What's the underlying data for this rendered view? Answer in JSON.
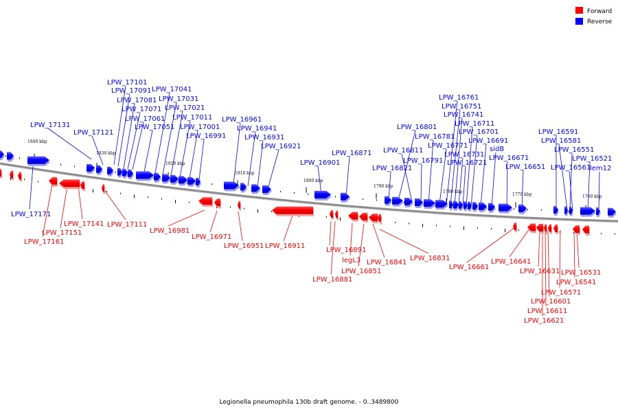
{
  "legend": [
    {
      "label": "Forward",
      "color": "#ff0000"
    },
    {
      "label": "Reverse",
      "color": "#0000ff"
    }
  ],
  "caption": "Legionella pneumophila 130b draft genome. - 0..3489800",
  "colors": {
    "forward": "#ff0000",
    "reverse": "#0000ff",
    "axis": "#8c8c8c"
  },
  "scale_labels": [
    "1840 kbp",
    "1830 kbp",
    "1820 kbp",
    "1810 kbp",
    "1800 kbp",
    "1790 kbp",
    "1780 kbp",
    "1770 kbp",
    "1760 kbp"
  ],
  "reverse_labels": [
    "LPW_17131",
    "LPW_17121",
    "LPW_17101",
    "LPW_17091",
    "LPW_17081",
    "LPW_17071",
    "LPW_17061",
    "LPW_17051",
    "LPW_17041",
    "LPW_17031",
    "LPW_17021",
    "LPW_17011",
    "LPW_17001",
    "LPW_16991",
    "LPW_16961",
    "LPW_16941",
    "LPW_16931",
    "LPW_16921",
    "LPW_16901",
    "LPW_16871",
    "LPW_16801",
    "LPW_16811",
    "LPW_16821",
    "LPW_16791",
    "LPW_16781",
    "LPW_16771",
    "LPW_16761",
    "LPW_16751",
    "LPW_16741",
    "LPW_16731",
    "LPW_16721",
    "LPW_16711",
    "LPW_16701",
    "LPW_16691",
    "sidB",
    "LPW_16671",
    "LPW_16651",
    "LPW_16591",
    "LPW_16581",
    "LPW_16551",
    "LPW_16561",
    "LPW_16521",
    "lem12",
    "LPW_17171"
  ],
  "forward_labels": [
    "LPW_17141",
    "LPW_17151",
    "LPW_17161",
    "LPW_17111",
    "LPW_16981",
    "LPW_16971",
    "LPW_16951",
    "LPW_16911",
    "LPW_16891",
    "LPW_16881",
    "legL3",
    "LPW_16851",
    "LPW_16841",
    "LPW_16831",
    "LPW_16661",
    "LPW_16641",
    "LPW_16631",
    "LPW_16571",
    "LPW_16601",
    "LPW_16611",
    "LPW_16621",
    "LPW_16531",
    "LPW_16541"
  ]
}
